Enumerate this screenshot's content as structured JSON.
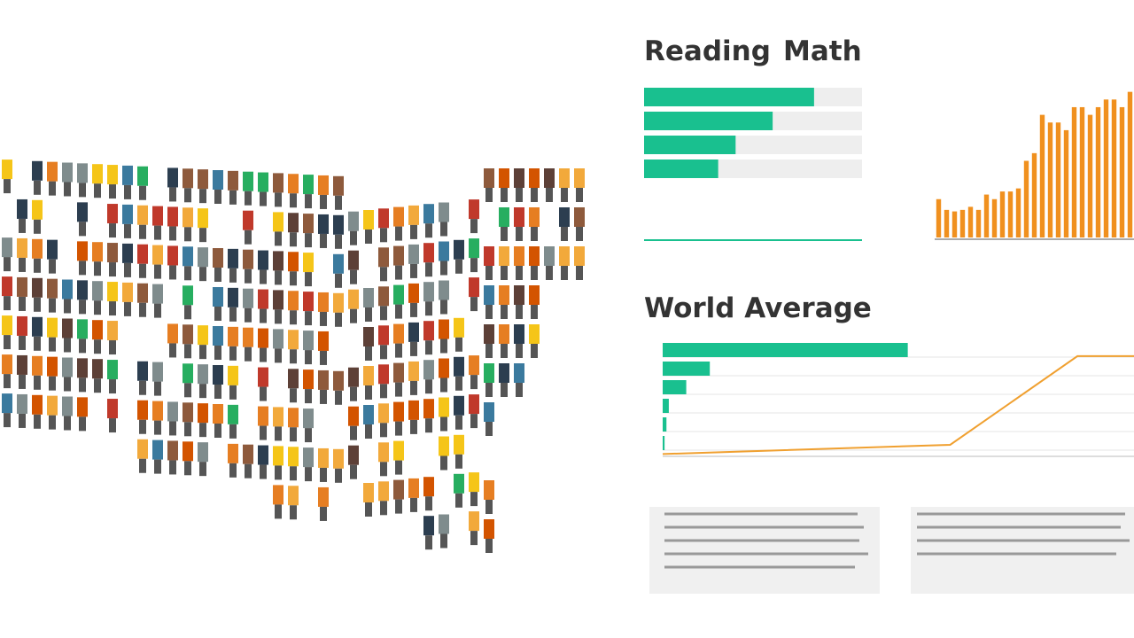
{
  "headings": {
    "reading": "Reading",
    "math": "Math",
    "world": "World Average"
  },
  "chart_data": [
    {
      "type": "hbar",
      "color": "#19c08f",
      "track": "#eeeeee",
      "xlim": [
        0,
        100
      ],
      "values": [
        78,
        59,
        42,
        34
      ]
    },
    {
      "type": "bar",
      "color": "#f0901e",
      "ylim": [
        0,
        100
      ],
      "values": [
        25,
        18,
        17,
        18,
        20,
        18,
        28,
        25,
        30,
        30,
        32,
        50,
        55,
        80,
        75,
        75,
        70,
        85,
        85,
        80,
        85,
        90,
        90,
        85,
        95
      ]
    },
    {
      "type": "hbar-line",
      "color": "#19c08f",
      "line_color": "#f0a030",
      "xlim": [
        0,
        100
      ],
      "values": [
        52,
        10,
        5,
        1.3,
        0.8,
        0.4
      ],
      "line": {
        "x": [
          0,
          61,
          88,
          100
        ],
        "values": [
          2,
          10,
          87,
          87
        ],
        "ylim": [
          0,
          100
        ]
      }
    }
  ]
}
